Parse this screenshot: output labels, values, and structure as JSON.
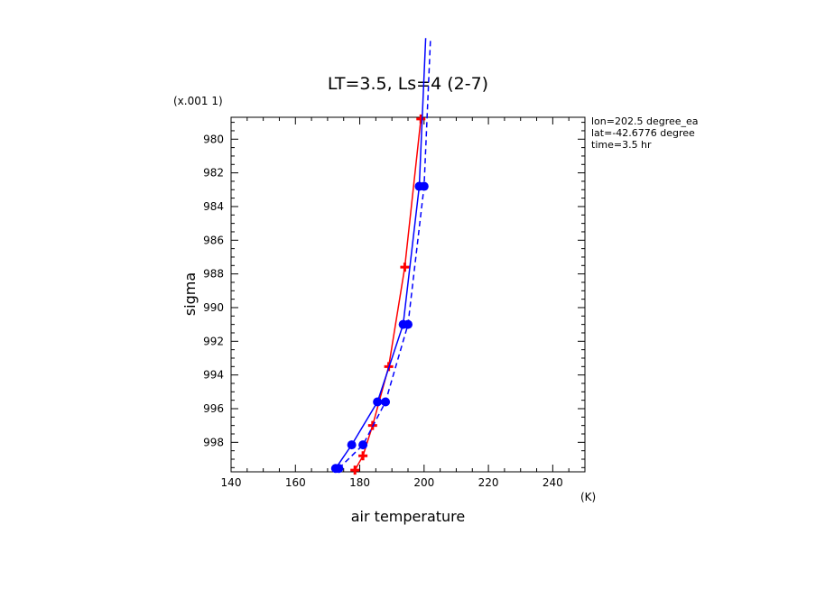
{
  "chart_data": {
    "type": "line",
    "title": "LT=3.5, Ls=4 (2-7)",
    "xlabel": "air temperature",
    "ylabel": "sigma",
    "x_unit": "(K)",
    "y_scale_note": "(x.001 1)",
    "xlim": [
      140,
      250
    ],
    "ylim": [
      999.75,
      978.7
    ],
    "xticks": [
      140,
      160,
      180,
      200,
      220,
      240
    ],
    "yticks": [
      980,
      982,
      984,
      986,
      988,
      990,
      992,
      994,
      996,
      998
    ],
    "info": [
      "lon=202.5 degree_ea",
      "lat=-42.6776 degree",
      "time=3.5 hr"
    ],
    "colors": {
      "red": "#ff0000",
      "blue": "#0000ff"
    },
    "series": [
      {
        "color": "#ff0000",
        "dash": "solid",
        "marker": "plus",
        "points": [
          [
            178.5,
            999.65
          ],
          [
            181,
            998.8
          ],
          [
            184,
            997.0
          ],
          [
            189,
            993.5
          ],
          [
            194,
            987.6
          ],
          [
            199,
            978.8
          ]
        ],
        "markers": [
          [
            178.5,
            999.65
          ],
          [
            181,
            998.8
          ],
          [
            184,
            997.0
          ],
          [
            189,
            993.5
          ],
          [
            194,
            987.6
          ],
          [
            199,
            978.8
          ]
        ]
      },
      {
        "color": "#0000ff",
        "dash": "solid",
        "marker": "circle",
        "points": [
          [
            172.5,
            999.55
          ],
          [
            177.5,
            998.15
          ],
          [
            185.5,
            995.6
          ],
          [
            193.5,
            991.0
          ],
          [
            198.5,
            982.8
          ],
          [
            200.5,
            974.0
          ]
        ],
        "markers": [
          [
            172.5,
            999.55
          ],
          [
            177.5,
            998.15
          ],
          [
            185.5,
            995.6
          ],
          [
            193.5,
            991.0
          ],
          [
            198.5,
            982.8
          ]
        ]
      },
      {
        "color": "#0000ff",
        "dash": "dashed",
        "marker": "circle",
        "points": [
          [
            173.5,
            999.55
          ],
          [
            181,
            998.15
          ],
          [
            188,
            995.6
          ],
          [
            195,
            991.0
          ],
          [
            200,
            982.8
          ],
          [
            202,
            974.0
          ]
        ],
        "markers": [
          [
            173.5,
            999.55
          ],
          [
            181,
            998.15
          ],
          [
            188,
            995.6
          ],
          [
            195,
            991.0
          ],
          [
            200,
            982.8
          ]
        ]
      }
    ]
  }
}
